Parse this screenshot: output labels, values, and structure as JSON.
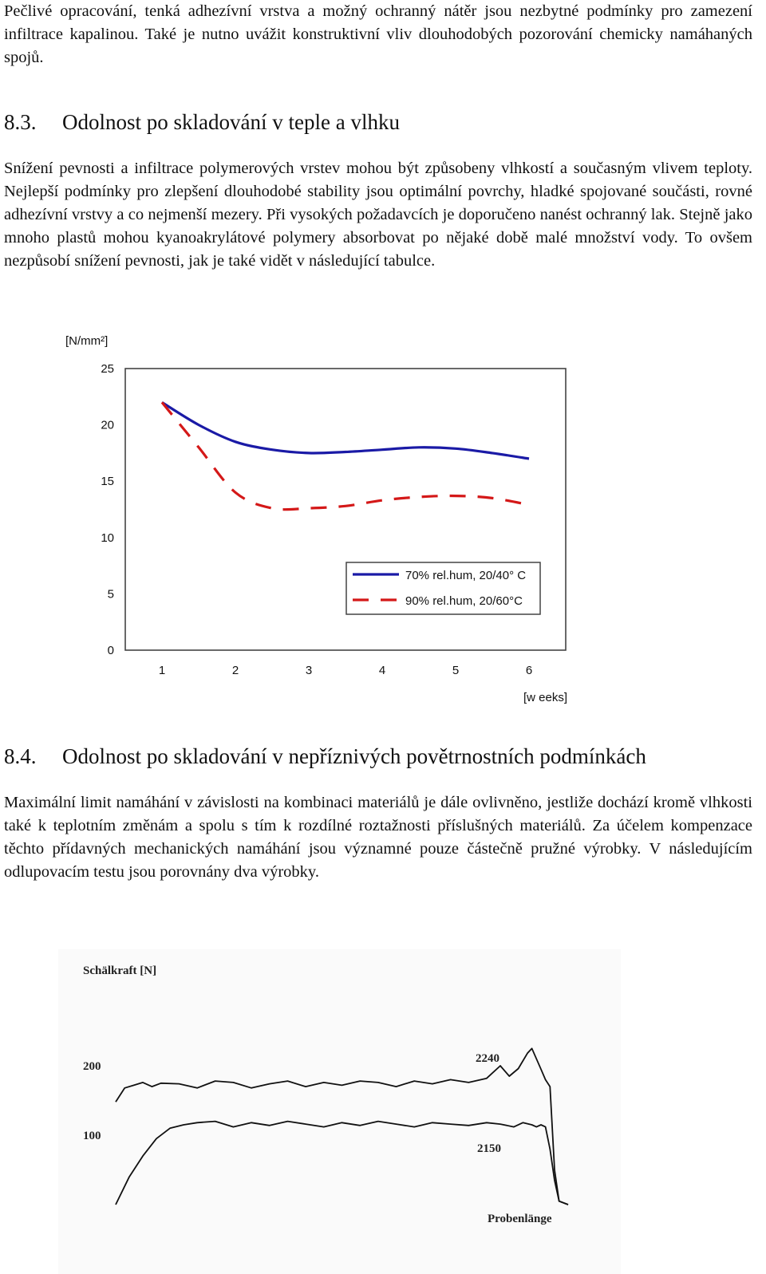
{
  "intro_paragraph": "Pečlivé opracování, tenká adhezívní vrstva a možný ochranný nátěr jsou nezbytné podmínky pro zamezení infiltrace kapalinou. Také je nutno uvážit konstruktivní vliv dlouhodobých pozorování chemicky namáhaných spojů.",
  "section_83": {
    "number": "8.3.",
    "title": "Odolnost po skladování v teple a vlhku",
    "paragraph": "Snížení pevnosti a infiltrace polymerových vrstev mohou být způsobeny vlhkostí a současným vlivem teploty. Nejlepší podmínky pro zlepšení dlouhodobé stability jsou optimální povrchy, hladké spojované součásti, rovné adhezívní vrstvy a co nejmenší mezery. Při vysokých požadavcích je doporučeno nanést ochranný lak. Stejně jako mnoho plastů mohou kyanoakrylátové polymery absorbovat po nějaké době malé množství vody. To ovšem nezpůsobí snížení pevnosti, jak je také vidět v následující tabulce."
  },
  "section_84": {
    "number": "8.4.",
    "title": "Odolnost po skladování v nepříznivých povětrnostních podmínkách",
    "paragraph": "Maximální limit namáhání v závislosti na kombinaci materiálů je dále ovlivněno, jestliže dochází kromě vlhkosti také k teplotním změnám a spolu s tím k rozdílné roztažnosti příslušných materiálů. Za účelem kompenzace těchto přídavných mechanických namáhání jsou významné pouze částečně pružné výrobky. V následujícím odlupovacím testu jsou porovnány dva výrobky."
  },
  "chart_data": [
    {
      "type": "line",
      "ylabel": "[N/mm²]",
      "xlabel": "[w eeks]",
      "ylim": [
        0,
        25
      ],
      "xlim": [
        0.5,
        6.5
      ],
      "yticks": [
        "0",
        "5",
        "10",
        "15",
        "20",
        "25"
      ],
      "xticks": [
        "1",
        "2",
        "3",
        "4",
        "5",
        "6"
      ],
      "grid": false,
      "legend_position": "bottom-right",
      "series": [
        {
          "name": "70% rel.hum, 20/40° C",
          "color": "#1a1aa6",
          "style": "solid",
          "x": [
            1,
            1.5,
            2,
            2.5,
            3,
            3.5,
            4,
            4.5,
            5,
            5.5,
            6
          ],
          "y": [
            22.0,
            20.0,
            18.5,
            17.8,
            17.5,
            17.6,
            17.8,
            18.0,
            17.9,
            17.5,
            17.0
          ]
        },
        {
          "name": "90% rel.hum, 20/60°C",
          "color": "#d41818",
          "style": "dashed",
          "x": [
            1,
            1.5,
            2,
            2.5,
            3,
            3.5,
            4,
            4.5,
            5,
            5.5,
            6
          ],
          "y": [
            22.0,
            18.0,
            14.0,
            12.6,
            12.6,
            12.8,
            13.3,
            13.6,
            13.7,
            13.5,
            12.9
          ]
        }
      ]
    },
    {
      "type": "line",
      "ylabel": "Schälkraft [N]",
      "xlabel": "Probenlänge",
      "ylim": [
        0,
        280
      ],
      "xlim": [
        0,
        100
      ],
      "yticks": [
        "100",
        "200"
      ],
      "grid": false,
      "series": [
        {
          "name": "2240",
          "color": "#111111",
          "style": "solid",
          "x": [
            0,
            2,
            4,
            6,
            8,
            10,
            14,
            18,
            22,
            26,
            30,
            34,
            38,
            42,
            46,
            50,
            54,
            58,
            62,
            66,
            70,
            74,
            78,
            82,
            85,
            87,
            89,
            91,
            92,
            93,
            94,
            95,
            96,
            97,
            98,
            100
          ],
          "y": [
            148,
            168,
            172,
            176,
            170,
            175,
            174,
            168,
            178,
            176,
            168,
            174,
            178,
            170,
            176,
            172,
            178,
            176,
            170,
            178,
            174,
            180,
            176,
            182,
            200,
            185,
            196,
            218,
            225,
            210,
            195,
            180,
            170,
            50,
            5,
            0
          ]
        },
        {
          "name": "2150",
          "color": "#111111",
          "style": "solid",
          "x": [
            0,
            3,
            6,
            9,
            12,
            15,
            18,
            22,
            26,
            30,
            34,
            38,
            42,
            46,
            50,
            54,
            58,
            62,
            66,
            70,
            74,
            78,
            82,
            85,
            88,
            90,
            92,
            93,
            94,
            95,
            96,
            97,
            98,
            100
          ],
          "y": [
            0,
            40,
            70,
            95,
            110,
            115,
            118,
            120,
            112,
            118,
            114,
            120,
            116,
            112,
            118,
            114,
            120,
            116,
            112,
            118,
            116,
            114,
            118,
            116,
            112,
            118,
            115,
            112,
            115,
            112,
            80,
            35,
            5,
            0
          ]
        }
      ]
    }
  ]
}
